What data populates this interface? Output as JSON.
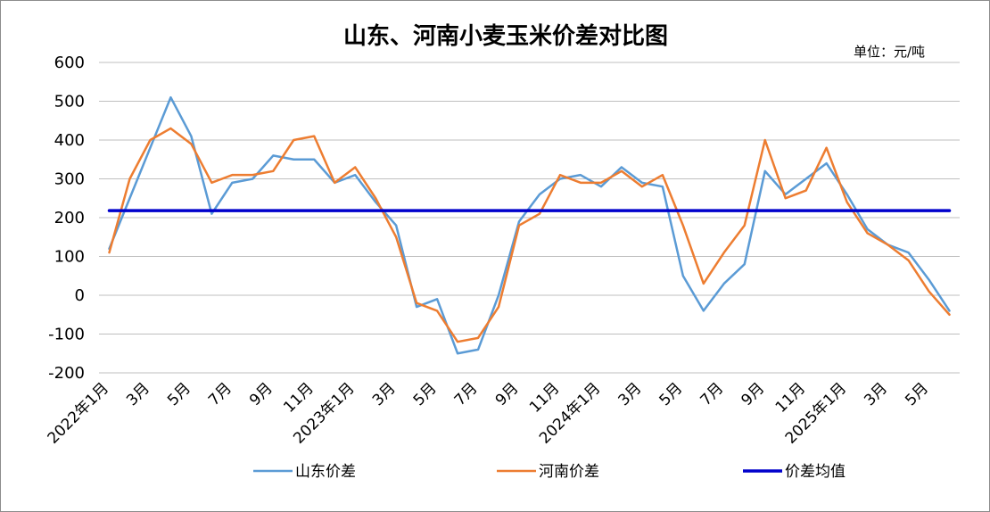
{
  "chart_data": {
    "type": "line",
    "title": "山东、河南小麦玉米价差对比图",
    "unit": "单位：元/吨",
    "ylim": [
      -200,
      600
    ],
    "y_ticks": [
      600,
      500,
      400,
      300,
      200,
      100,
      0,
      -100,
      -200
    ],
    "grid": true,
    "legend_position": "bottom",
    "x_tick_labels": [
      {
        "index": 0,
        "label": "2022年1月"
      },
      {
        "index": 2,
        "label": "3月"
      },
      {
        "index": 4,
        "label": "5月"
      },
      {
        "index": 6,
        "label": "7月"
      },
      {
        "index": 8,
        "label": "9月"
      },
      {
        "index": 10,
        "label": "11月"
      },
      {
        "index": 12,
        "label": "2023年1月"
      },
      {
        "index": 14,
        "label": "3月"
      },
      {
        "index": 16,
        "label": "5月"
      },
      {
        "index": 18,
        "label": "7月"
      },
      {
        "index": 20,
        "label": "9月"
      },
      {
        "index": 22,
        "label": "11月"
      },
      {
        "index": 24,
        "label": "2024年1月"
      },
      {
        "index": 26,
        "label": "3月"
      },
      {
        "index": 28,
        "label": "5月"
      },
      {
        "index": 30,
        "label": "7月"
      },
      {
        "index": 32,
        "label": "9月"
      },
      {
        "index": 34,
        "label": "11月"
      },
      {
        "index": 36,
        "label": "2025年1月"
      },
      {
        "index": 38,
        "label": "3月"
      },
      {
        "index": 40,
        "label": "5月"
      }
    ],
    "series": [
      {
        "name": "山东价差",
        "color": "#5b9bd5",
        "values": [
          120,
          250,
          380,
          510,
          410,
          210,
          290,
          300,
          360,
          350,
          350,
          290,
          310,
          240,
          180,
          -30,
          -10,
          -150,
          -140,
          0,
          190,
          260,
          300,
          310,
          280,
          330,
          290,
          280,
          50,
          -40,
          30,
          80,
          320,
          260,
          300,
          340,
          260,
          170,
          130,
          110,
          40,
          -40
        ]
      },
      {
        "name": "河南价差",
        "color": "#ed7d31",
        "values": [
          110,
          300,
          400,
          430,
          390,
          290,
          310,
          310,
          320,
          400,
          410,
          290,
          330,
          250,
          150,
          -20,
          -40,
          -120,
          -110,
          -30,
          180,
          210,
          310,
          290,
          290,
          320,
          280,
          310,
          180,
          30,
          110,
          180,
          400,
          250,
          270,
          380,
          240,
          160,
          130,
          90,
          10,
          -50
        ]
      },
      {
        "name": "价差均值",
        "color": "#0000cc",
        "values": [
          218,
          218,
          218,
          218,
          218,
          218,
          218,
          218,
          218,
          218,
          218,
          218,
          218,
          218,
          218,
          218,
          218,
          218,
          218,
          218,
          218,
          218,
          218,
          218,
          218,
          218,
          218,
          218,
          218,
          218,
          218,
          218,
          218,
          218,
          218,
          218,
          218,
          218,
          218,
          218,
          218,
          218
        ]
      }
    ]
  }
}
